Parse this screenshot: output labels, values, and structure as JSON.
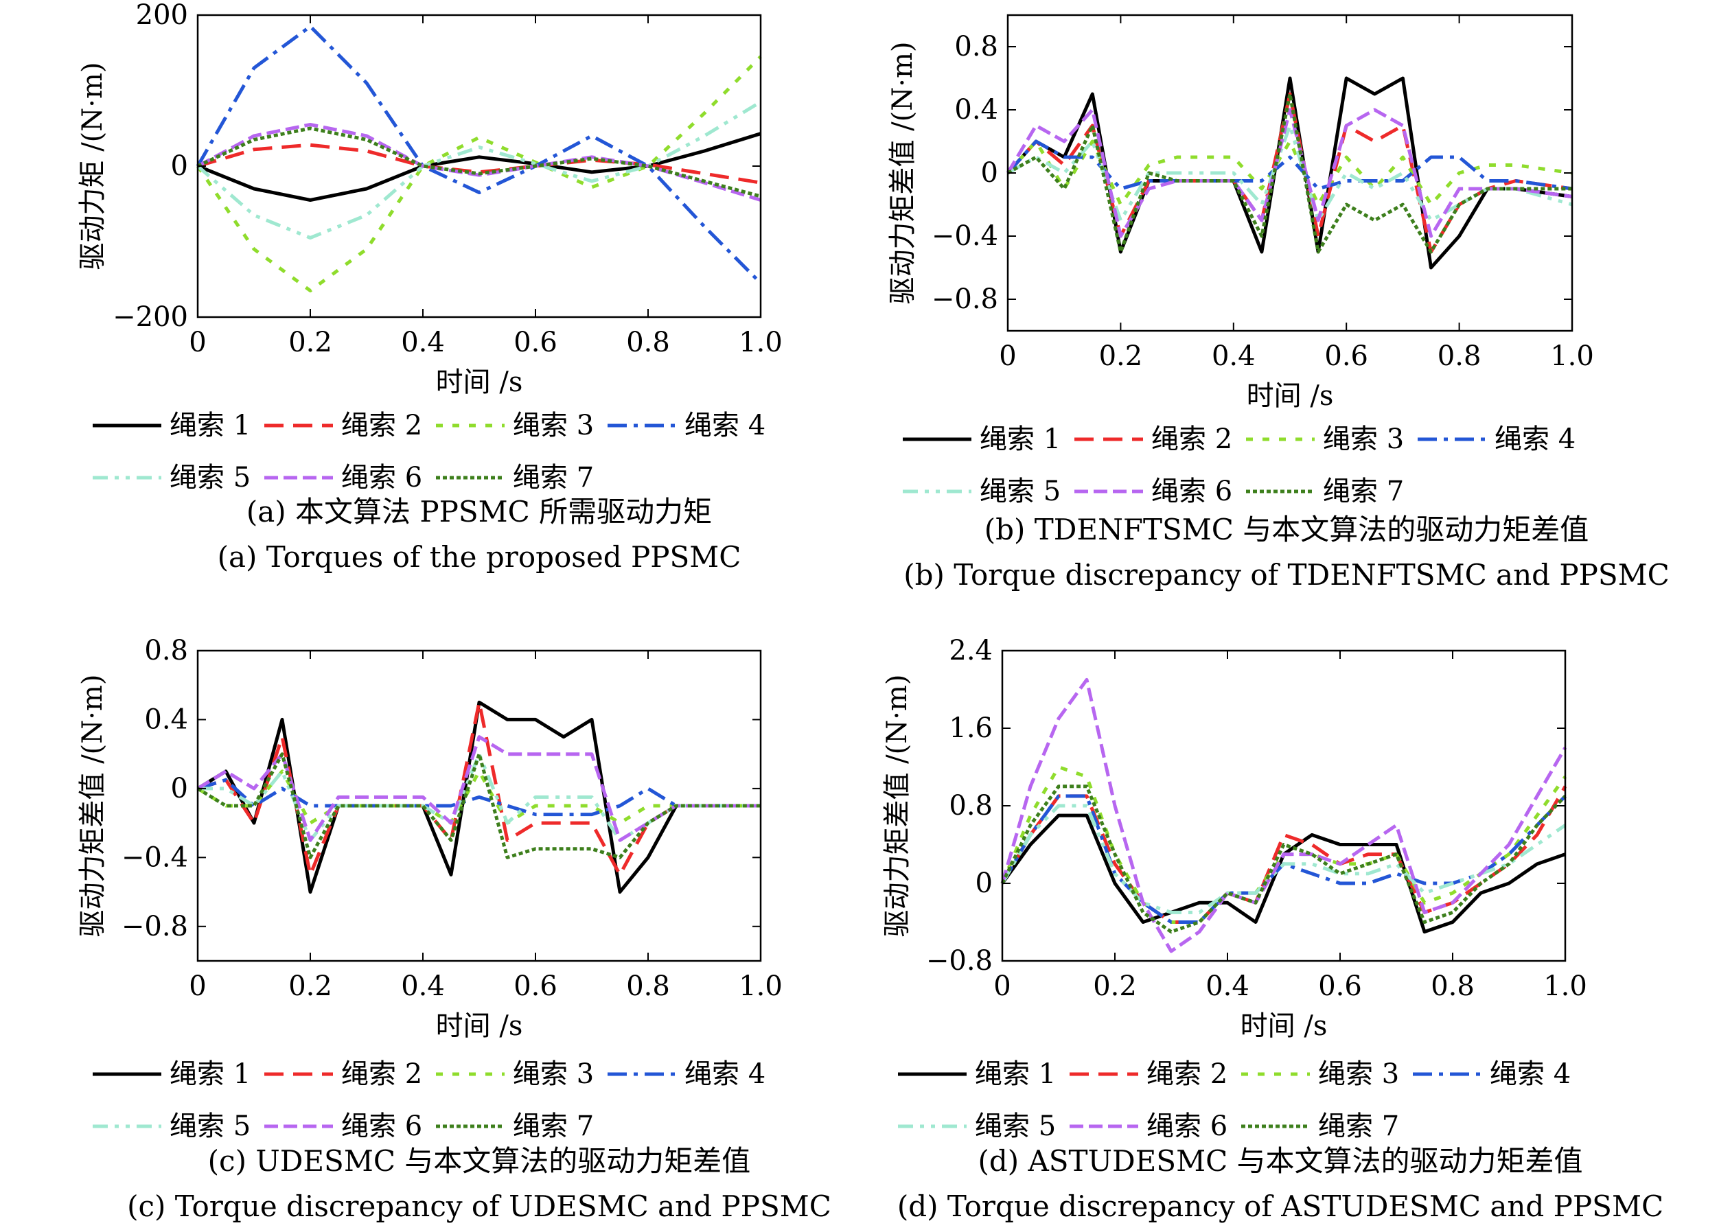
{
  "colors": {
    "rope1": "#000000",
    "rope2": "#ee2a2a",
    "rope3": "#8fdc2c",
    "rope4": "#2356d6",
    "rope5": "#9fe8d0",
    "rope6": "#b766f0",
    "rope7": "#3d7f1c"
  },
  "chart_data": [
    {
      "type": "line",
      "xlabel": "时间 /s",
      "ylabel": "驱动力矩 /(N·m)",
      "xlim": [
        0,
        1.0
      ],
      "ylim": [
        -200,
        200
      ],
      "xticks": [
        "0",
        "0.2",
        "0.4",
        "0.6",
        "0.8",
        "1.0"
      ],
      "yticks": [
        "200",
        "0",
        "−200"
      ],
      "legend": [
        "绳索 1",
        "绳索 2",
        "绳索 3",
        "绳索 4",
        "绳索 5",
        "绳索 6",
        "绳索 7"
      ],
      "caption_cn": "(a) 本文算法 PPSMC 所需驱动力矩",
      "caption_en": "(a) Torques of the proposed PPSMC",
      "x": [
        0,
        0.1,
        0.2,
        0.3,
        0.4,
        0.5,
        0.6,
        0.7,
        0.8,
        0.9,
        1.0
      ],
      "series": [
        {
          "name": "绳索 1",
          "values": [
            0,
            -30,
            -45,
            -30,
            0,
            12,
            3,
            -8,
            0,
            20,
            43
          ]
        },
        {
          "name": "绳索 2",
          "values": [
            0,
            22,
            28,
            20,
            0,
            -8,
            0,
            8,
            2,
            -10,
            -22
          ]
        },
        {
          "name": "绳索 3",
          "values": [
            0,
            -110,
            -165,
            -110,
            0,
            38,
            5,
            -28,
            0,
            70,
            145
          ]
        },
        {
          "name": "绳索 4",
          "values": [
            0,
            130,
            185,
            110,
            0,
            -35,
            0,
            40,
            0,
            -80,
            -155
          ]
        },
        {
          "name": "绳索 5",
          "values": [
            0,
            -65,
            -95,
            -65,
            0,
            25,
            3,
            -20,
            0,
            40,
            85
          ]
        },
        {
          "name": "绳索 6",
          "values": [
            0,
            40,
            55,
            40,
            0,
            -12,
            0,
            12,
            0,
            -22,
            -45
          ]
        },
        {
          "name": "绳索 7",
          "values": [
            0,
            35,
            50,
            35,
            0,
            -10,
            0,
            10,
            0,
            -20,
            -40
          ]
        }
      ]
    },
    {
      "type": "line",
      "xlabel": "时间 /s",
      "ylabel": "驱动力矩差值 /(N·m)",
      "xlim": [
        0,
        1.0
      ],
      "ylim": [
        -1.0,
        1.0
      ],
      "xticks": [
        "0",
        "0.2",
        "0.4",
        "0.6",
        "0.8",
        "1.0"
      ],
      "yticks": [
        "0.8",
        "0.4",
        "0",
        "−0.4",
        "−0.8"
      ],
      "legend": [
        "绳索 1",
        "绳索 2",
        "绳索 3",
        "绳索 4",
        "绳索 5",
        "绳索 6",
        "绳索 7"
      ],
      "caption_cn": "(b) TDENFTSMC 与本文算法的驱动力矩差值",
      "caption_en": "(b) Torque discrepancy of TDENFTSMC and PPSMC",
      "x": [
        0,
        0.05,
        0.1,
        0.15,
        0.2,
        0.25,
        0.3,
        0.4,
        0.45,
        0.5,
        0.55,
        0.6,
        0.65,
        0.7,
        0.75,
        0.8,
        0.85,
        0.9,
        1.0
      ],
      "series": [
        {
          "name": "绳索 1",
          "values": [
            0,
            0.2,
            0.1,
            0.5,
            -0.5,
            -0.05,
            -0.05,
            -0.05,
            -0.5,
            0.6,
            -0.5,
            0.6,
            0.5,
            0.6,
            -0.6,
            -0.4,
            -0.1,
            -0.1,
            -0.15
          ]
        },
        {
          "name": "绳索 2",
          "values": [
            0,
            0.2,
            0.05,
            0.3,
            -0.4,
            -0.05,
            -0.05,
            -0.05,
            -0.3,
            0.5,
            -0.4,
            0.3,
            0.2,
            0.3,
            -0.5,
            -0.2,
            -0.1,
            -0.05,
            -0.1
          ]
        },
        {
          "name": "绳索 3",
          "values": [
            0,
            0.2,
            -0.1,
            0.2,
            -0.2,
            0.05,
            0.1,
            0.1,
            -0.1,
            0.2,
            -0.2,
            0.1,
            -0.1,
            0.1,
            -0.2,
            0.0,
            0.05,
            0.05,
            0.0
          ]
        },
        {
          "name": "绳索 4",
          "values": [
            0,
            0.2,
            0.1,
            0.1,
            -0.1,
            -0.05,
            -0.05,
            -0.05,
            -0.05,
            0.1,
            -0.1,
            -0.05,
            -0.05,
            -0.05,
            0.1,
            0.1,
            -0.05,
            -0.05,
            -0.1
          ]
        },
        {
          "name": "绳索 5",
          "values": [
            0,
            0.1,
            0.0,
            0.2,
            -0.3,
            0.0,
            0.0,
            0.0,
            -0.2,
            0.3,
            -0.3,
            0.0,
            -0.1,
            0.0,
            -0.3,
            -0.2,
            -0.1,
            -0.1,
            -0.2
          ]
        },
        {
          "name": "绳索 6",
          "values": [
            0,
            0.3,
            0.2,
            0.4,
            -0.4,
            -0.1,
            -0.05,
            -0.05,
            -0.3,
            0.4,
            -0.3,
            0.3,
            0.4,
            0.3,
            -0.4,
            -0.1,
            -0.1,
            -0.1,
            -0.15
          ]
        },
        {
          "name": "绳索 7",
          "values": [
            0,
            0.1,
            -0.1,
            0.3,
            -0.5,
            0.0,
            -0.05,
            -0.05,
            -0.4,
            0.5,
            -0.5,
            -0.2,
            -0.3,
            -0.2,
            -0.5,
            -0.2,
            -0.1,
            -0.1,
            -0.1
          ]
        }
      ]
    },
    {
      "type": "line",
      "xlabel": "时间 /s",
      "ylabel": "驱动力矩差值 /(N·m)",
      "xlim": [
        0,
        1.0
      ],
      "ylim": [
        -1.0,
        0.8
      ],
      "xticks": [
        "0",
        "0.2",
        "0.4",
        "0.6",
        "0.8",
        "1.0"
      ],
      "yticks": [
        "0.8",
        "0.4",
        "0",
        "−0.4",
        "−0.8"
      ],
      "legend": [
        "绳索 1",
        "绳索 2",
        "绳索 3",
        "绳索 4",
        "绳索 5",
        "绳索 6",
        "绳索 7"
      ],
      "caption_cn": "(c) UDESMC 与本文算法的驱动力矩差值",
      "caption_en": "(c) Torque discrepancy of UDESMC and PPSMC",
      "x": [
        0,
        0.05,
        0.1,
        0.15,
        0.2,
        0.25,
        0.3,
        0.4,
        0.45,
        0.5,
        0.55,
        0.6,
        0.65,
        0.7,
        0.75,
        0.8,
        0.85,
        0.9,
        1.0
      ],
      "series": [
        {
          "name": "绳索 1",
          "values": [
            0,
            0.1,
            -0.2,
            0.4,
            -0.6,
            -0.1,
            -0.1,
            -0.1,
            -0.5,
            0.5,
            0.4,
            0.4,
            0.3,
            0.4,
            -0.6,
            -0.4,
            -0.1,
            -0.1,
            -0.1
          ]
        },
        {
          "name": "绳索 2",
          "values": [
            0,
            0.05,
            -0.2,
            0.3,
            -0.5,
            -0.1,
            -0.1,
            -0.1,
            -0.3,
            0.5,
            -0.3,
            -0.2,
            -0.2,
            -0.2,
            -0.5,
            -0.2,
            -0.1,
            -0.1,
            -0.1
          ]
        },
        {
          "name": "绳索 3",
          "values": [
            0,
            -0.1,
            -0.1,
            0.1,
            -0.2,
            -0.1,
            -0.1,
            -0.1,
            -0.2,
            0.1,
            -0.2,
            -0.1,
            -0.1,
            -0.1,
            -0.2,
            -0.1,
            -0.1,
            -0.1,
            -0.1
          ]
        },
        {
          "name": "绳索 4",
          "values": [
            0,
            0.05,
            -0.1,
            0.0,
            -0.1,
            -0.1,
            -0.1,
            -0.1,
            -0.1,
            -0.05,
            -0.1,
            -0.15,
            -0.15,
            -0.15,
            -0.1,
            0.0,
            -0.1,
            -0.1,
            -0.1
          ]
        },
        {
          "name": "绳索 5",
          "values": [
            0,
            0.0,
            -0.1,
            0.1,
            -0.3,
            -0.1,
            -0.1,
            -0.1,
            -0.2,
            0.2,
            -0.2,
            -0.05,
            -0.05,
            -0.05,
            -0.3,
            -0.2,
            -0.1,
            -0.1,
            -0.1
          ]
        },
        {
          "name": "绳索 6",
          "values": [
            0,
            0.1,
            0.0,
            0.2,
            -0.3,
            -0.05,
            -0.05,
            -0.05,
            -0.2,
            0.3,
            0.2,
            0.2,
            0.2,
            0.2,
            -0.3,
            -0.2,
            -0.1,
            -0.1,
            -0.1
          ]
        },
        {
          "name": "绳索 7",
          "values": [
            0,
            -0.1,
            -0.1,
            0.2,
            -0.4,
            -0.1,
            -0.1,
            -0.1,
            -0.3,
            0.2,
            -0.4,
            -0.35,
            -0.35,
            -0.35,
            -0.4,
            -0.2,
            -0.1,
            -0.1,
            -0.1
          ]
        }
      ]
    },
    {
      "type": "line",
      "xlabel": "时间 /s",
      "ylabel": "驱动力矩差值 /(N·m)",
      "xlim": [
        0,
        1.0
      ],
      "ylim": [
        -0.8,
        2.4
      ],
      "xticks": [
        "0",
        "0.2",
        "0.4",
        "0.6",
        "0.8",
        "1.0"
      ],
      "yticks": [
        "2.4",
        "1.6",
        "0.8",
        "0",
        "−0.8"
      ],
      "legend": [
        "绳索 1",
        "绳索 2",
        "绳索 3",
        "绳索 4",
        "绳索 5",
        "绳索 6",
        "绳索 7"
      ],
      "caption_cn": "(d) ASTUDESMC 与本文算法的驱动力矩差值",
      "caption_en": "(d) Torque discrepancy of ASTUDESMC and PPSMC",
      "x": [
        0,
        0.05,
        0.1,
        0.15,
        0.2,
        0.25,
        0.3,
        0.35,
        0.4,
        0.45,
        0.5,
        0.55,
        0.6,
        0.65,
        0.7,
        0.75,
        0.8,
        0.85,
        0.9,
        0.95,
        1.0
      ],
      "series": [
        {
          "name": "绳索 1",
          "values": [
            0,
            0.4,
            0.7,
            0.7,
            0.0,
            -0.4,
            -0.3,
            -0.2,
            -0.2,
            -0.4,
            0.3,
            0.5,
            0.4,
            0.4,
            0.4,
            -0.5,
            -0.4,
            -0.1,
            0.0,
            0.2,
            0.3
          ]
        },
        {
          "name": "绳索 2",
          "values": [
            0,
            0.5,
            0.9,
            0.9,
            0.2,
            -0.2,
            -0.4,
            -0.4,
            -0.1,
            -0.2,
            0.5,
            0.4,
            0.2,
            0.3,
            0.3,
            -0.3,
            -0.2,
            0.0,
            0.2,
            0.5,
            1.0
          ]
        },
        {
          "name": "绳索 3",
          "values": [
            0,
            0.7,
            1.2,
            1.1,
            0.3,
            -0.2,
            -0.4,
            -0.4,
            -0.1,
            -0.1,
            0.3,
            0.3,
            0.2,
            0.2,
            0.3,
            -0.2,
            -0.1,
            0.1,
            0.3,
            0.7,
            1.1
          ]
        },
        {
          "name": "绳索 4",
          "values": [
            0,
            0.5,
            0.9,
            0.9,
            0.1,
            -0.2,
            -0.4,
            -0.4,
            -0.1,
            -0.1,
            0.2,
            0.1,
            0.0,
            0.0,
            0.1,
            0.0,
            0.0,
            0.1,
            0.3,
            0.6,
            0.9
          ]
        },
        {
          "name": "绳索 5",
          "values": [
            0,
            0.5,
            0.8,
            0.8,
            0.1,
            -0.2,
            -0.3,
            -0.3,
            -0.1,
            -0.1,
            0.2,
            0.2,
            0.1,
            0.1,
            0.2,
            -0.1,
            0.0,
            0.1,
            0.2,
            0.4,
            0.6
          ]
        },
        {
          "name": "绳索 6",
          "values": [
            0,
            1.0,
            1.7,
            2.1,
            0.8,
            -0.2,
            -0.7,
            -0.5,
            -0.1,
            -0.2,
            0.3,
            0.3,
            0.2,
            0.4,
            0.6,
            -0.3,
            -0.2,
            0.1,
            0.4,
            0.9,
            1.4
          ]
        },
        {
          "name": "绳索 7",
          "values": [
            0,
            0.6,
            1.0,
            1.0,
            0.3,
            -0.3,
            -0.5,
            -0.4,
            -0.1,
            -0.2,
            0.4,
            0.3,
            0.1,
            0.2,
            0.3,
            -0.4,
            -0.3,
            0.0,
            0.2,
            0.6,
            0.9
          ]
        }
      ]
    }
  ]
}
